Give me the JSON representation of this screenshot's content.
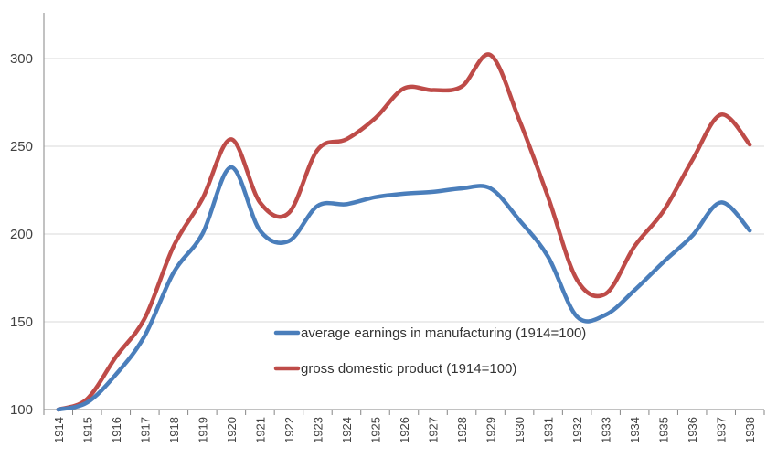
{
  "chart_data": {
    "type": "line",
    "title": "",
    "xlabel": "",
    "ylabel": "",
    "categories": [
      "1914",
      "1915",
      "1916",
      "1917",
      "1918",
      "1919",
      "1920",
      "1921",
      "1922",
      "1923",
      "1924",
      "1925",
      "1926",
      "1927",
      "1928",
      "1929",
      "1930",
      "1931",
      "1932",
      "1933",
      "1934",
      "1935",
      "1936",
      "1937",
      "1938"
    ],
    "ylim": [
      100,
      320
    ],
    "yticks": [
      100,
      150,
      200,
      250,
      300
    ],
    "grid": true,
    "legend_position": "center-bottom inside plot",
    "series": [
      {
        "name": "average earnings in manufacturing (1914=100)",
        "color": "#4a7ebb",
        "values": [
          100,
          104,
          120,
          142,
          178,
          200,
          238,
          202,
          196,
          216,
          217,
          221,
          223,
          224,
          226,
          226,
          208,
          187,
          153,
          154,
          168,
          184,
          199,
          218,
          202
        ]
      },
      {
        "name": "gross domestic product (1914=100)",
        "color": "#be4b48",
        "values": [
          100,
          106,
          130,
          152,
          193,
          220,
          254,
          218,
          212,
          248,
          254,
          266,
          283,
          282,
          284,
          302,
          265,
          221,
          174,
          166,
          193,
          213,
          242,
          268,
          251
        ]
      }
    ]
  }
}
